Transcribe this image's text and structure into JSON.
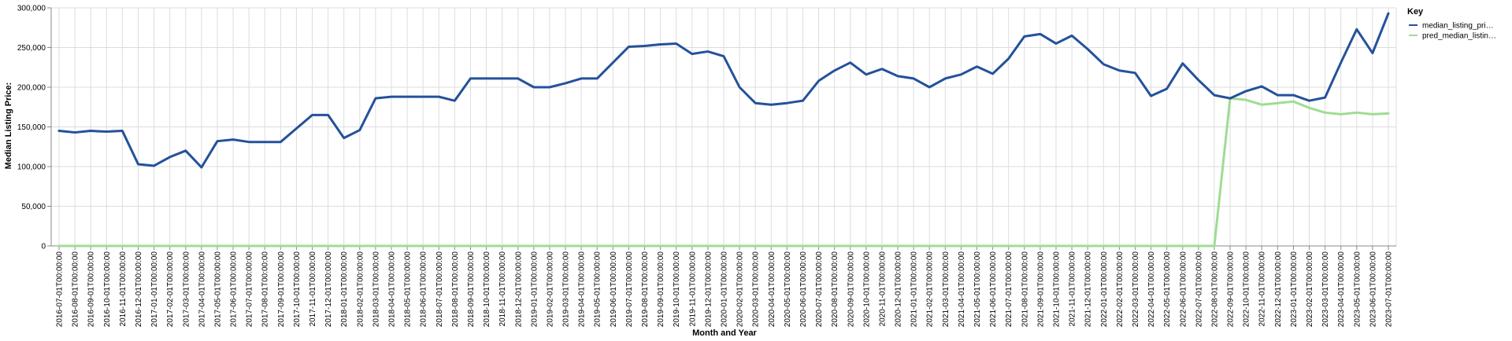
{
  "chart_data": {
    "type": "line",
    "xlabel": "Month and Year",
    "ylabel": "Median Listing Price:",
    "ylim": [
      0,
      300000
    ],
    "yticks": [
      "0",
      "50,000",
      "100,000",
      "150,000",
      "200,000",
      "250,000",
      "300,000"
    ],
    "ytick_values": [
      0,
      50000,
      100000,
      150000,
      200000,
      250000,
      300000
    ],
    "grid": true,
    "legend": {
      "title": "Key",
      "placement": "right"
    },
    "x": [
      "2016-07-01T00:00:00",
      "2016-08-01T00:00:00",
      "2016-09-01T00:00:00",
      "2016-10-01T00:00:00",
      "2016-11-01T00:00:00",
      "2016-12-01T00:00:00",
      "2017-01-01T00:00:00",
      "2017-02-01T00:00:00",
      "2017-03-01T00:00:00",
      "2017-04-01T00:00:00",
      "2017-05-01T00:00:00",
      "2017-06-01T00:00:00",
      "2017-07-01T00:00:00",
      "2017-08-01T00:00:00",
      "2017-09-01T00:00:00",
      "2017-10-01T00:00:00",
      "2017-11-01T00:00:00",
      "2017-12-01T00:00:00",
      "2018-01-01T00:00:00",
      "2018-02-01T00:00:00",
      "2018-03-01T00:00:00",
      "2018-04-01T00:00:00",
      "2018-05-01T00:00:00",
      "2018-06-01T00:00:00",
      "2018-07-01T00:00:00",
      "2018-08-01T00:00:00",
      "2018-09-01T00:00:00",
      "2018-10-01T00:00:00",
      "2018-11-01T00:00:00",
      "2018-12-01T00:00:00",
      "2019-01-01T00:00:00",
      "2019-02-01T00:00:00",
      "2019-03-01T00:00:00",
      "2019-04-01T00:00:00",
      "2019-05-01T00:00:00",
      "2019-06-01T00:00:00",
      "2019-07-01T00:00:00",
      "2019-08-01T00:00:00",
      "2019-09-01T00:00:00",
      "2019-10-01T00:00:00",
      "2019-11-01T00:00:00",
      "2019-12-01T00:00:00",
      "2020-01-01T00:00:00",
      "2020-02-01T00:00:00",
      "2020-03-01T00:00:00",
      "2020-04-01T00:00:00",
      "2020-05-01T00:00:00",
      "2020-06-01T00:00:00",
      "2020-07-01T00:00:00",
      "2020-08-01T00:00:00",
      "2020-09-01T00:00:00",
      "2020-10-01T00:00:00",
      "2020-11-01T00:00:00",
      "2020-12-01T00:00:00",
      "2021-01-01T00:00:00",
      "2021-02-01T00:00:00",
      "2021-03-01T00:00:00",
      "2021-04-01T00:00:00",
      "2021-05-01T00:00:00",
      "2021-06-01T00:00:00",
      "2021-07-01T00:00:00",
      "2021-08-01T00:00:00",
      "2021-09-01T00:00:00",
      "2021-10-01T00:00:00",
      "2021-11-01T00:00:00",
      "2021-12-01T00:00:00",
      "2022-01-01T00:00:00",
      "2022-02-01T00:00:00",
      "2022-03-01T00:00:00",
      "2022-04-01T00:00:00",
      "2022-05-01T00:00:00",
      "2022-06-01T00:00:00",
      "2022-07-01T00:00:00",
      "2022-08-01T00:00:00",
      "2022-09-01T00:00:00",
      "2022-10-01T00:00:00",
      "2022-11-01T00:00:00",
      "2022-12-01T00:00:00",
      "2023-01-01T00:00:00",
      "2023-02-01T00:00:00",
      "2023-03-01T00:00:00",
      "2023-04-01T00:00:00",
      "2023-05-01T00:00:00",
      "2023-06-01T00:00:00",
      "2023-07-01T00:00:00"
    ],
    "series": [
      {
        "name": "median_listing_pri…",
        "color": "#24519a",
        "values": [
          145000,
          143000,
          145000,
          144000,
          145000,
          103000,
          101000,
          112000,
          120000,
          99000,
          132000,
          134000,
          131000,
          131000,
          131000,
          148000,
          165000,
          165000,
          136000,
          146000,
          186000,
          188000,
          188000,
          188000,
          188000,
          183000,
          211000,
          211000,
          211000,
          211000,
          200000,
          200000,
          205000,
          211000,
          211000,
          231000,
          251000,
          252000,
          254000,
          255000,
          242000,
          245000,
          239000,
          200000,
          180000,
          178000,
          180000,
          183000,
          208000,
          221000,
          231000,
          216000,
          223000,
          214000,
          211000,
          200000,
          211000,
          216000,
          226000,
          217000,
          236000,
          264000,
          267000,
          255000,
          265000,
          248000,
          229000,
          221000,
          218000,
          189000,
          198000,
          230000,
          209000,
          190000,
          186000,
          195000,
          201000,
          190000,
          190000,
          183000,
          187000,
          231000,
          273000,
          243000,
          293000
        ]
      },
      {
        "name": "pred_median_listin…",
        "color": "#9fdc93",
        "values": [
          0,
          0,
          0,
          0,
          0,
          0,
          0,
          0,
          0,
          0,
          0,
          0,
          0,
          0,
          0,
          0,
          0,
          0,
          0,
          0,
          0,
          0,
          0,
          0,
          0,
          0,
          0,
          0,
          0,
          0,
          0,
          0,
          0,
          0,
          0,
          0,
          0,
          0,
          0,
          0,
          0,
          0,
          0,
          0,
          0,
          0,
          0,
          0,
          0,
          0,
          0,
          0,
          0,
          0,
          0,
          0,
          0,
          0,
          0,
          0,
          0,
          0,
          0,
          0,
          0,
          0,
          0,
          0,
          0,
          0,
          0,
          0,
          0,
          0,
          186000,
          184000,
          178000,
          180000,
          182000,
          174000,
          168000,
          166000,
          168000,
          166000,
          167000
        ]
      }
    ]
  }
}
